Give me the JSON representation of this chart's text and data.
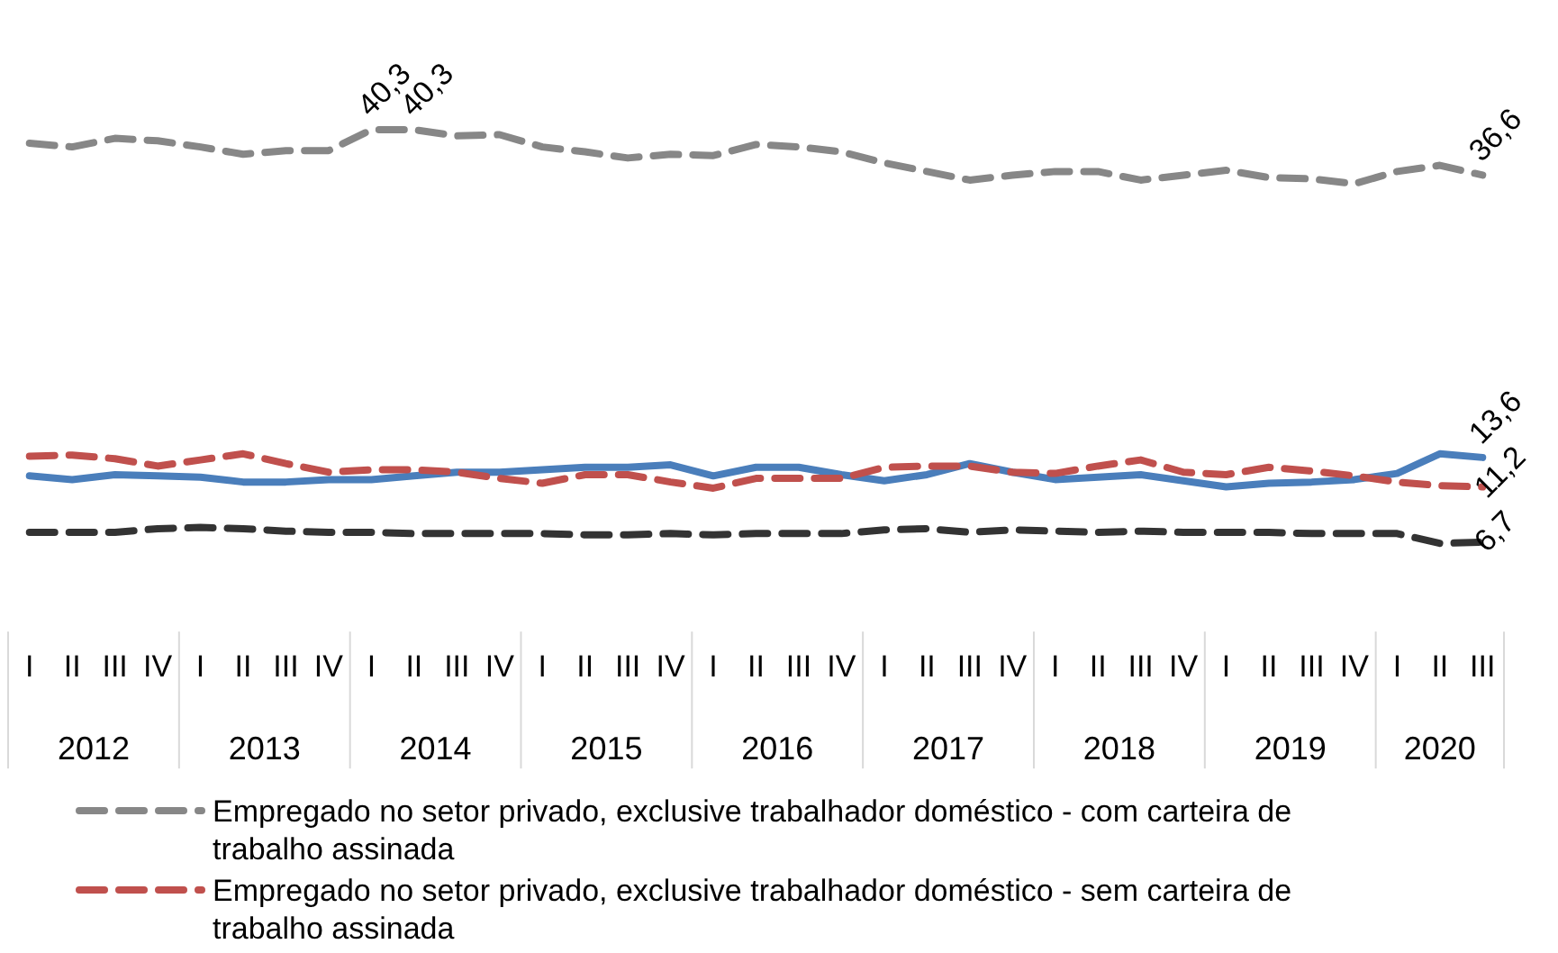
{
  "chart_data": {
    "type": "line",
    "categories": [
      "I",
      "II",
      "III",
      "IV",
      "I",
      "II",
      "III",
      "IV",
      "I",
      "II",
      "III",
      "IV",
      "I",
      "II",
      "III",
      "IV",
      "I",
      "II",
      "III",
      "IV",
      "I",
      "II",
      "III",
      "IV",
      "I",
      "II",
      "III",
      "IV",
      "I",
      "II",
      "III",
      "IV",
      "I",
      "II",
      "III"
    ],
    "annotations": [
      "2012",
      "2013",
      "2014",
      "2015",
      "2016",
      "2017",
      "2018",
      "2019",
      "2020"
    ],
    "legend": "bottom",
    "series": [
      {
        "name": "Empregado no setor privado, exclusive trabalhador doméstico - com carteira de trabalho assinada",
        "color": "#878787",
        "line_style": "dashed",
        "values": [
          39.2,
          38.9,
          39.6,
          39.4,
          38.9,
          38.3,
          38.6,
          38.6,
          40.3,
          40.3,
          39.8,
          39.9,
          38.9,
          38.5,
          38.0,
          38.3,
          38.2,
          39.1,
          38.9,
          38.5,
          37.6,
          36.9,
          36.2,
          36.6,
          36.9,
          36.9,
          36.2,
          36.6,
          37.0,
          36.4,
          36.3,
          35.9,
          36.9,
          37.4,
          36.6
        ],
        "value_labels": [
          null,
          null,
          null,
          null,
          null,
          null,
          null,
          null,
          "40,3",
          "40,3",
          null,
          null,
          null,
          null,
          null,
          null,
          null,
          null,
          null,
          null,
          null,
          null,
          null,
          null,
          null,
          null,
          null,
          null,
          null,
          null,
          null,
          null,
          null,
          null,
          "36,6"
        ]
      },
      {
        "name": "Empregado no setor privado, exclusive trabalhador doméstico - sem carteira de trabalho assinada",
        "color": "#c0504d",
        "line_style": "dashed",
        "values": [
          13.7,
          13.8,
          13.5,
          12.9,
          13.4,
          13.9,
          13.1,
          12.4,
          12.6,
          12.6,
          12.4,
          11.9,
          11.5,
          12.2,
          12.2,
          11.6,
          11.1,
          11.9,
          11.9,
          11.9,
          12.8,
          12.9,
          12.9,
          12.4,
          12.3,
          12.9,
          13.4,
          12.4,
          12.2,
          12.8,
          12.5,
          12.1,
          11.6,
          11.3,
          11.2
        ],
        "value_labels": [
          null,
          null,
          null,
          null,
          null,
          null,
          null,
          null,
          null,
          null,
          null,
          null,
          null,
          null,
          null,
          null,
          null,
          null,
          null,
          null,
          null,
          null,
          null,
          null,
          null,
          null,
          null,
          null,
          null,
          null,
          null,
          null,
          null,
          null,
          "11,2"
        ]
      },
      {
        "color": "#4a7ebb",
        "line_style": "solid",
        "values": [
          12.1,
          11.8,
          12.2,
          12.1,
          12.0,
          11.6,
          11.6,
          11.8,
          11.8,
          12.1,
          12.4,
          12.4,
          12.6,
          12.8,
          12.8,
          13.0,
          12.1,
          12.8,
          12.8,
          12.2,
          11.7,
          12.2,
          13.1,
          12.4,
          11.8,
          12.0,
          12.2,
          11.7,
          11.2,
          11.5,
          11.6,
          11.8,
          12.3,
          13.9,
          13.6
        ],
        "value_labels": [
          null,
          null,
          null,
          null,
          null,
          null,
          null,
          null,
          null,
          null,
          null,
          null,
          null,
          null,
          null,
          null,
          null,
          null,
          null,
          null,
          null,
          null,
          null,
          null,
          null,
          null,
          null,
          null,
          null,
          null,
          null,
          null,
          null,
          null,
          "13,6"
        ]
      },
      {
        "color": "#333333",
        "line_style": "dashed",
        "values": [
          7.5,
          7.5,
          7.5,
          7.8,
          7.9,
          7.8,
          7.6,
          7.5,
          7.5,
          7.4,
          7.4,
          7.4,
          7.4,
          7.3,
          7.3,
          7.4,
          7.3,
          7.4,
          7.4,
          7.4,
          7.7,
          7.8,
          7.5,
          7.7,
          7.6,
          7.5,
          7.6,
          7.5,
          7.5,
          7.5,
          7.4,
          7.4,
          7.4,
          6.6,
          6.7
        ],
        "value_labels": [
          null,
          null,
          null,
          null,
          null,
          null,
          null,
          null,
          null,
          null,
          null,
          null,
          null,
          null,
          null,
          null,
          null,
          null,
          null,
          null,
          null,
          null,
          null,
          null,
          null,
          null,
          null,
          null,
          null,
          null,
          null,
          null,
          null,
          null,
          "6,7"
        ]
      }
    ]
  }
}
